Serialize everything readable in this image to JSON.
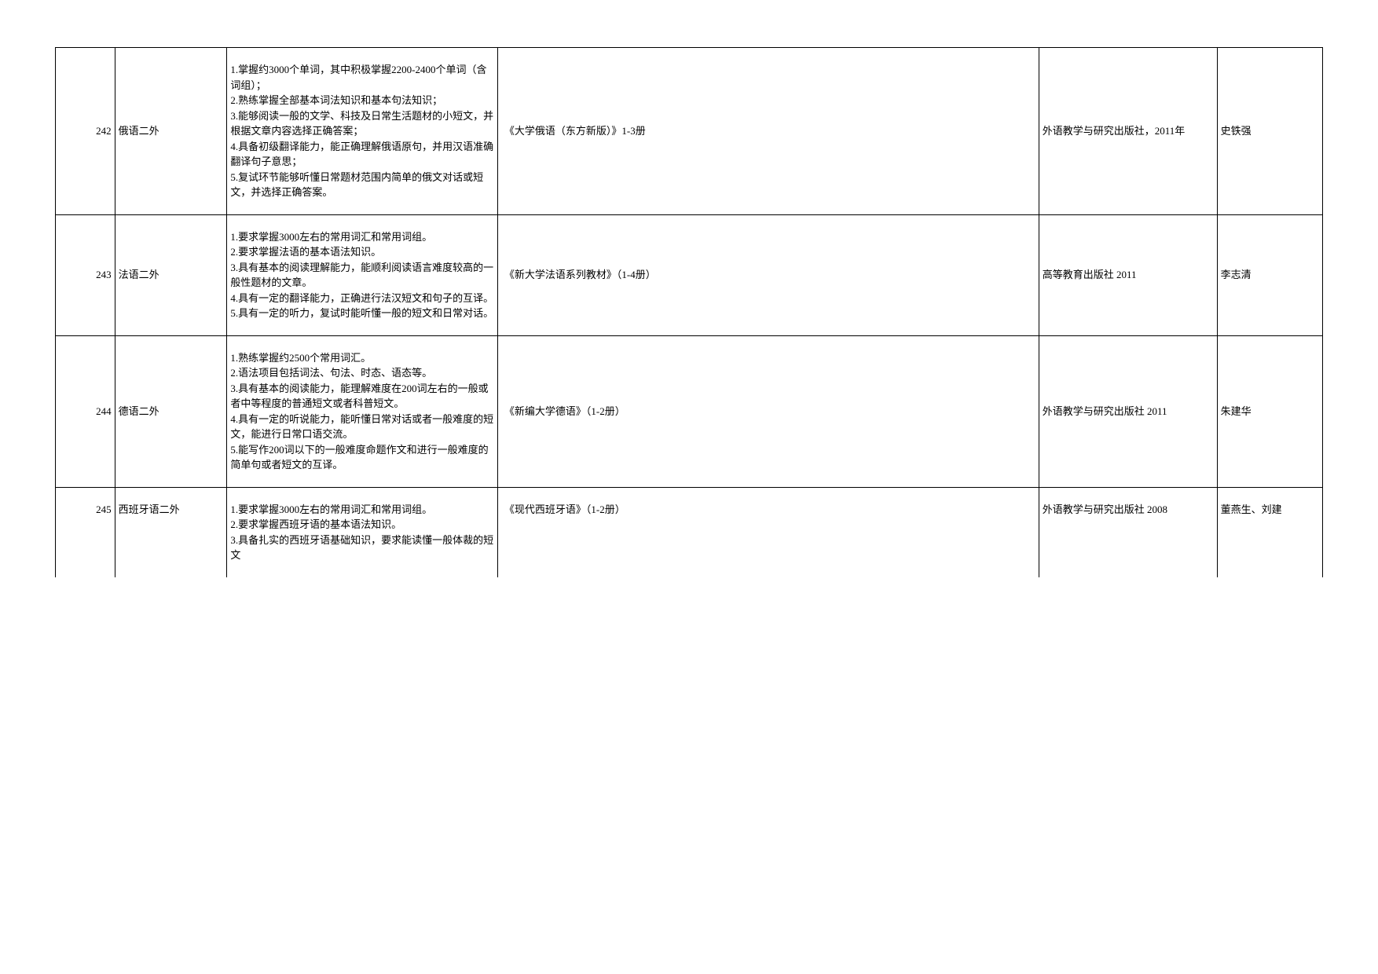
{
  "rows": [
    {
      "code": "242",
      "name": "俄语二外",
      "desc": "1.掌握约3000个单词，其中积极掌握2200-2400个单词（含词组）；\n2.熟练掌握全部基本词法知识和基本句法知识；\n3.能够阅读一般的文学、科技及日常生活题材的小短文，并根据文章内容选择正确答案；\n4.具备初级翻译能力，能正确理解俄语原句，并用汉语准确翻译句子意思；\n5.复试环节能够听懂日常题材范围内简单的俄文对话或短文，并选择正确答案。",
      "book": "《大学俄语（东方新版）》1-3册",
      "publisher": "外语教学与研究出版社，2011年",
      "author": "史铁强"
    },
    {
      "code": "243",
      "name": "法语二外",
      "desc": "1.要求掌握3000左右的常用词汇和常用词组。\n2.要求掌握法语的基本语法知识。\n3.具有基本的阅读理解能力，能顺利阅读语言难度较高的一般性题材的文章。\n4.具有一定的翻译能力，正确进行法汉短文和句子的互译。\n5.具有一定的听力，复试时能听懂一般的短文和日常对话。",
      "book": "《新大学法语系列教材》（1-4册）",
      "publisher": "高等教育出版社 2011",
      "author": "李志清"
    },
    {
      "code": "244",
      "name": "德语二外",
      "desc": "1.熟练掌握约2500个常用词汇。\n2.语法项目包括词法、句法、时态、语态等。\n3.具有基本的阅读能力，能理解难度在200词左右的一般或者中等程度的普通短文或者科普短文。\n4.具有一定的听说能力，能听懂日常对话或者一般难度的短文，能进行日常口语交流。\n5.能写作200词以下的一般难度命题作文和进行一般难度的简单句或者短文的互译。",
      "book": "《新编大学德语》（1-2册）",
      "publisher": "外语教学与研究出版社 2011",
      "author": "朱建华"
    },
    {
      "code": "245",
      "name": "西班牙语二外",
      "desc": "1.要求掌握3000左右的常用词汇和常用词组。\n2.要求掌握西班牙语的基本语法知识。\n3.具备扎实的西班牙语基础知识，要求能读懂一般体裁的短文",
      "book": "《现代西班牙语》（1-2册）",
      "publisher": "外语教学与研究出版社 2008",
      "author": "董燕生、刘建"
    }
  ]
}
